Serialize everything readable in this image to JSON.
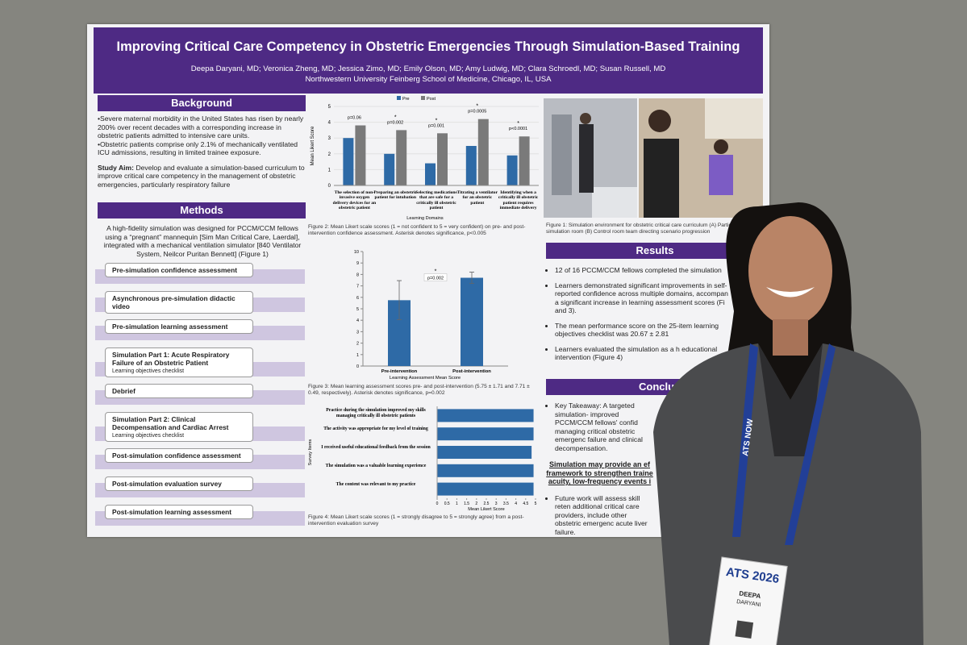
{
  "poster": {
    "title": "Improving Critical Care Competency in Obstetric Emergencies Through Simulation-Based Training",
    "authors": "Deepa Daryani, MD; Veronica Zheng, MD; Jessica Zimo, MD; Emily Olson, MD; Amy Ludwig, MD; Clara Schroedl, MD; Susan Russell, MD",
    "affiliation": "Northwestern University Feinberg School of Medicine, Chicago, IL, USA",
    "background": {
      "heading": "Background",
      "paragraphs": [
        "•Severe maternal morbidity in the United States has risen by nearly 200% over recent decades with a corresponding increase in obstetric patients admitted to intensive care units.",
        "•Obstetric patients comprise only 2.1% of mechanically ventilated ICU admissions, resulting in limited trainee exposure."
      ],
      "aim_label": "Study Aim:",
      "aim": "Develop and evaluate a simulation-based curriculum to improve critical care competency in the management of obstetric emergencies, particularly respiratory failure"
    },
    "methods": {
      "heading": "Methods",
      "intro": "A high-fidelity simulation was designed for PCCM/CCM fellows using a “pregnant” mannequin [Sim Man Critical Care, Laerdal], integrated with a mechanical ventilation simulator [840 Ventilator System, Neilcor Puritan Bennett] (Figure 1)",
      "steps": [
        {
          "label": "Pre-simulation confidence assessment"
        },
        {
          "label": "Asynchronous pre-simulation didactic video"
        },
        {
          "label": "Pre-simulation learning assessment"
        },
        {
          "label": "Simulation Part 1: Acute Respiratory Failure of an Obstetric Patient",
          "sub": "Learning objectives checklist"
        },
        {
          "label": "Debrief"
        },
        {
          "label": "Simulation Part 2: Clinical Decompensation and Cardiac Arrest",
          "sub": "Learning objectives checklist"
        },
        {
          "label": "Post-simulation confidence assessment"
        },
        {
          "label": "Post-simulation evaluation survey"
        },
        {
          "label": "Post-simulation learning assessment"
        }
      ]
    },
    "figure2": {
      "type": "bar",
      "categories": [
        "The selection of non-invasive oxygen delivery devices for an obstetric patient",
        "Preparing an obstetric patient for intubation",
        "Selecting medications that are safe for a critically ill obstetric patient",
        "Titrating a ventilator for an obstetric patient",
        "Identifying when a critically ill obstetric patient requires immediate delivery"
      ],
      "series": [
        {
          "name": "Pre",
          "color": "#2e6aa6",
          "values": [
            3.0,
            2.0,
            1.4,
            2.5,
            1.9
          ]
        },
        {
          "name": "Post",
          "color": "#7a7a7a",
          "values": [
            3.8,
            3.5,
            3.3,
            4.2,
            3.1
          ]
        }
      ],
      "p_labels": [
        "p=0.06",
        "p=0.002",
        "p=0.001",
        "p=0.0005",
        "p<0.0001"
      ],
      "significance": [
        null,
        "*",
        "*",
        "*",
        "*"
      ],
      "ylim": [
        0,
        5
      ],
      "yticks": [
        0,
        1,
        2,
        3,
        4,
        5
      ],
      "xlabel": "Learning Domains",
      "ylabel": "Mean Likert Score",
      "caption": "Figure 2: Mean Likert scale scores (1 = not confident to 5 = very confident) on pre- and post-intervention confidence assessment. Asterisk denotes significance, p<0.005"
    },
    "figure3": {
      "type": "bar",
      "categories": [
        "Pre-intervention",
        "Post-intervention"
      ],
      "values": [
        5.75,
        7.71
      ],
      "errors": [
        1.71,
        0.49
      ],
      "color": "#2e6aa6",
      "ylim": [
        0,
        10
      ],
      "yticks": [
        0,
        1,
        2,
        3,
        4,
        5,
        6,
        7,
        8,
        9,
        10
      ],
      "annotation": "p=0.002",
      "significance": "*",
      "xlabel": "Learning Assessment Mean Score",
      "caption": "Figure 3: Mean learning assessment scores pre- and post-intervention (5.75 ± 1.71 and 7.71 ± 0.49, respectively). Asterisk denotes significance, p=0.002"
    },
    "figure4": {
      "type": "hbar",
      "categories": [
        "Practice during the simulation improved my skills managing critically ill obstetric patients",
        "The activity was appropriate for my level of training",
        "I received useful educational feedback from the session",
        "The simulation was a valuable learning experience",
        "The content was relevant to my practice"
      ],
      "values": [
        4.9,
        4.9,
        4.8,
        4.9,
        4.9
      ],
      "color": "#2e6aa6",
      "xlim": [
        0,
        5
      ],
      "xticks": [
        0,
        0.5,
        1,
        1.5,
        2,
        2.5,
        3,
        3.5,
        4,
        4.5,
        5
      ],
      "xlabel": "Mean Likert Score",
      "ylabel": "Survey Items",
      "caption": "Figure 4: Mean Likert scale scores (1 = strongly disagree to 5 = strongly agree) from a post-intervention evaluation survey"
    },
    "figure1_caption": "Figure 1: Simulation environment for obstetric critical care curriculum (A) Participants in simulation room (B) Control room team directing scenario progression",
    "results": {
      "heading": "Results",
      "bullets": [
        "12 of 16 PCCM/CCM fellows completed the simulation",
        "Learners demonstrated significant improvements in self-reported confidence across multiple domains, accompan a significant increase in learning assessment scores (Fi and 3).",
        "The mean performance score on the 25-item learning objectives checklist was 20.67 ± 2.81",
        "Learners evaluated the simulation as a h educational intervention (Figure 4)"
      ]
    },
    "conclusions": {
      "heading": "Conclusio",
      "bullets": [
        "Key Takeaway: A targeted simulation- improved PCCM/CCM fellows' confid managing critical obstetric emergenc failure and clinical decompensation."
      ],
      "highlight": "Simulation may provide an ef framework to strengthen traine acuity, low-frequency events i",
      "future": "Future work will assess skill reten additional critical care providers, include other obstetric emergenc acute liver failure."
    }
  },
  "badge": {
    "event": "ATS 2026",
    "first_name": "DEEPA",
    "last_name": "DARYANI",
    "lanyard": "ATS NOW"
  }
}
